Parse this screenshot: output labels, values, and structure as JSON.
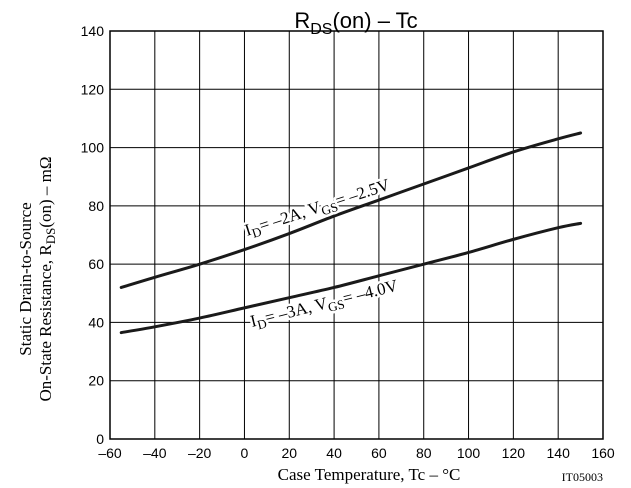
{
  "chart_data": {
    "type": "line",
    "title": {
      "main": "R",
      "sub": "DS",
      "rest": "(on)  –  Tc"
    },
    "xlabel": "Case Temperature, Tc  –  °C",
    "ylabel_line1": "Static Drain-to-Source",
    "ylabel_line2": {
      "pre": "On-State Resistance, R",
      "sub": "DS",
      "post": "(on)  –  mΩ"
    },
    "figure_id": "IT05003",
    "xlim": [
      -60,
      160
    ],
    "ylim": [
      0,
      140
    ],
    "x_ticks": [
      -60,
      -40,
      -20,
      0,
      20,
      40,
      60,
      80,
      100,
      120,
      140,
      160
    ],
    "y_ticks": [
      0,
      20,
      40,
      60,
      80,
      100,
      120,
      140
    ],
    "x_tick_labels": [
      "–60",
      "–40",
      "–20",
      "0",
      "20",
      "40",
      "60",
      "80",
      "100",
      "120",
      "140",
      "160"
    ],
    "y_tick_labels": [
      "0",
      "20",
      "40",
      "60",
      "80",
      "100",
      "120",
      "140"
    ],
    "grid": true,
    "series": [
      {
        "label": {
          "i": "I",
          "isub": "D",
          "mid": "= –2A, V",
          "vsub": "GS",
          "end": "= –2.5V"
        },
        "x": [
          -55,
          -40,
          -20,
          0,
          20,
          40,
          60,
          80,
          100,
          120,
          140,
          150
        ],
        "y": [
          52,
          55.5,
          60,
          65,
          70.5,
          76.5,
          82,
          87.5,
          93,
          98.5,
          103,
          105
        ]
      },
      {
        "label": {
          "i": "I",
          "isub": "D",
          "mid": "= –3A, V",
          "vsub": "GS",
          "end": "= –4.0V"
        },
        "x": [
          -55,
          -40,
          -20,
          0,
          20,
          40,
          60,
          80,
          100,
          120,
          140,
          150
        ],
        "y": [
          36.5,
          38.5,
          41.5,
          45,
          48.5,
          52,
          56,
          60,
          64,
          68.5,
          72.5,
          74
        ]
      }
    ]
  }
}
